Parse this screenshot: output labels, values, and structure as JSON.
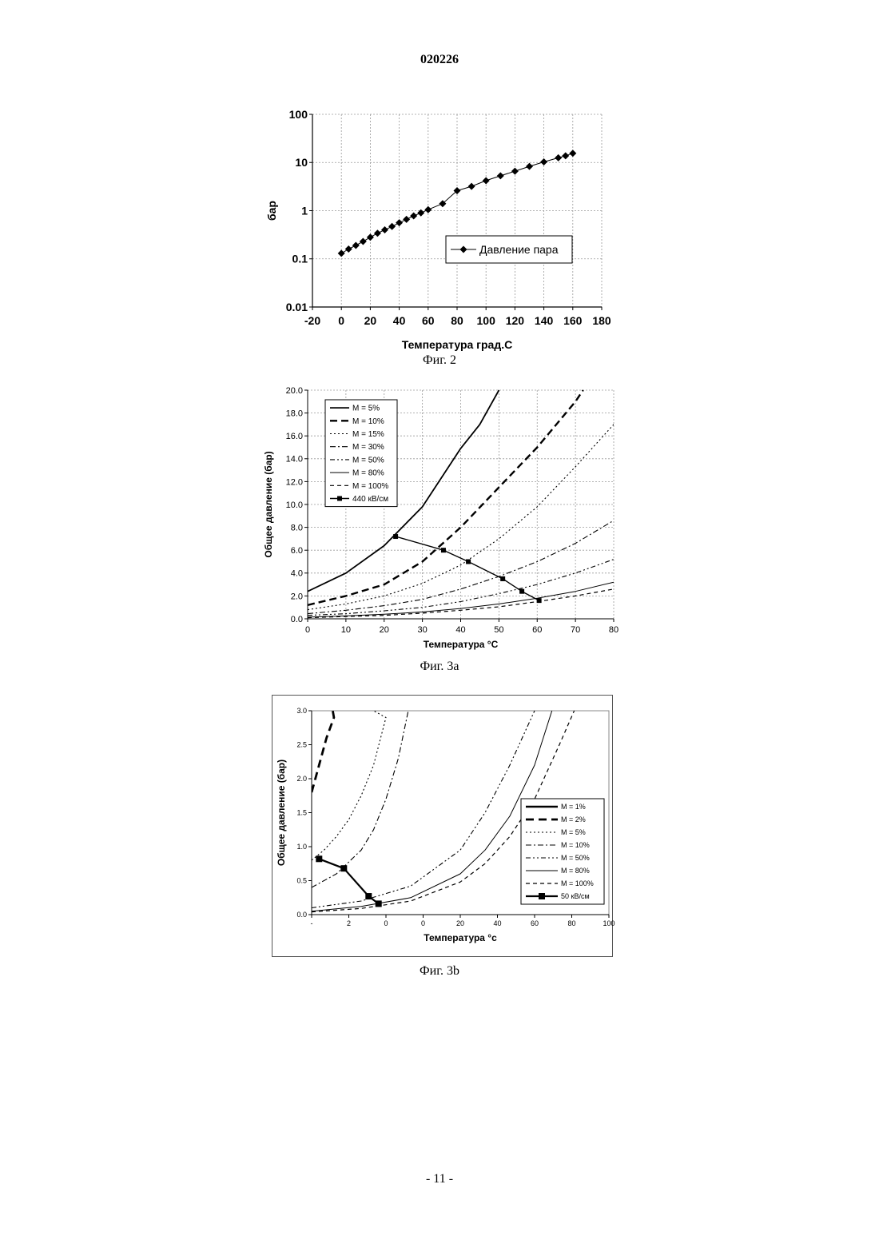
{
  "header": {
    "doc_number": "020226"
  },
  "footer": {
    "page_number": "- 11 -"
  },
  "chart_data": [
    {
      "id": "fig2",
      "type": "line",
      "caption": "Фиг. 2",
      "xlabel": "Температура град.С",
      "ylabel": "бар",
      "yscale": "log",
      "xlim": [
        -20,
        180
      ],
      "ylim": [
        0.01,
        100
      ],
      "x_ticks": [
        "-20",
        "0",
        "20",
        "40",
        "60",
        "80",
        "100",
        "120",
        "140",
        "160",
        "180"
      ],
      "y_ticks": [
        "0.01",
        "0.1",
        "1",
        "10",
        "100"
      ],
      "legend_position": "right",
      "grid": true,
      "series": [
        {
          "name": "Давление пара",
          "marker": "diamond",
          "x": [
            0,
            5,
            10,
            15,
            20,
            25,
            30,
            35,
            40,
            45,
            50,
            55,
            60,
            70,
            80,
            90,
            100,
            110,
            120,
            130,
            140,
            150,
            155,
            160
          ],
          "y": [
            0.13,
            0.16,
            0.19,
            0.23,
            0.28,
            0.34,
            0.4,
            0.47,
            0.56,
            0.66,
            0.78,
            0.9,
            1.05,
            1.4,
            2.6,
            3.2,
            4.2,
            5.3,
            6.6,
            8.3,
            10.3,
            12.5,
            13.8,
            15.5
          ]
        }
      ]
    },
    {
      "id": "fig3a",
      "type": "line",
      "caption": "Фиг. 3a",
      "xlabel": "Температура °С",
      "ylabel": "Общее давление (бар)",
      "xlim": [
        0,
        80
      ],
      "ylim": [
        0,
        20
      ],
      "x_ticks": [
        "0",
        "10",
        "20",
        "30",
        "40",
        "50",
        "60",
        "70",
        "80"
      ],
      "y_ticks": [
        "0.0",
        "2.0",
        "4.0",
        "6.0",
        "8.0",
        "10.0",
        "12.0",
        "14.0",
        "16.0",
        "18.0",
        "20.0"
      ],
      "legend_position": "top-left",
      "grid": true,
      "series": [
        {
          "name": "M = 5%",
          "style": "solid-thick",
          "x": [
            0,
            10,
            20,
            30,
            40,
            45,
            50
          ],
          "y": [
            2.4,
            4.0,
            6.4,
            9.8,
            14.9,
            17.0,
            20.0
          ]
        },
        {
          "name": "M = 10%",
          "style": "long-dash",
          "x": [
            0,
            10,
            20,
            30,
            40,
            50,
            60,
            70,
            72
          ],
          "y": [
            1.2,
            2.0,
            3.0,
            5.0,
            8.0,
            11.5,
            15.0,
            19.0,
            20.0
          ]
        },
        {
          "name": "M = 15%",
          "style": "dotted",
          "x": [
            0,
            10,
            20,
            30,
            40,
            50,
            60,
            70,
            80
          ],
          "y": [
            0.8,
            1.3,
            2.0,
            3.1,
            4.7,
            7.0,
            9.8,
            13.3,
            17.0
          ]
        },
        {
          "name": "M = 30%",
          "style": "dash-dot",
          "x": [
            0,
            10,
            20,
            30,
            40,
            50,
            60,
            70,
            80
          ],
          "y": [
            0.45,
            0.75,
            1.15,
            1.7,
            2.6,
            3.7,
            5.0,
            6.6,
            8.6
          ]
        },
        {
          "name": "M = 50%",
          "style": "dash-dot-dot",
          "x": [
            0,
            10,
            20,
            30,
            40,
            50,
            60,
            70,
            80
          ],
          "y": [
            0.3,
            0.45,
            0.7,
            1.0,
            1.5,
            2.2,
            3.0,
            4.0,
            5.2
          ]
        },
        {
          "name": "M = 80%",
          "style": "solid-thin",
          "x": [
            0,
            10,
            20,
            30,
            40,
            50,
            60,
            70,
            80
          ],
          "y": [
            0.15,
            0.25,
            0.4,
            0.6,
            0.9,
            1.3,
            1.8,
            2.4,
            3.2
          ]
        },
        {
          "name": "M = 100%",
          "style": "dash",
          "x": [
            0,
            10,
            20,
            30,
            40,
            50,
            60,
            70,
            80
          ],
          "y": [
            0.1,
            0.2,
            0.3,
            0.5,
            0.75,
            1.05,
            1.5,
            2.0,
            2.6
          ]
        },
        {
          "name": "440 кВ/см",
          "style": "solid-marker",
          "marker": "square",
          "x": [
            23,
            35.5,
            42,
            51,
            56,
            60.5
          ],
          "y": [
            7.2,
            6.0,
            5.0,
            3.5,
            2.4,
            1.6
          ]
        }
      ]
    },
    {
      "id": "fig3b",
      "type": "line",
      "caption": "Фиг. 3b",
      "xlabel": "Температура °с",
      "ylabel": "Общее давление (бар)",
      "xlim": [
        -20,
        100
      ],
      "ylim": [
        0,
        3
      ],
      "x_ticks": [
        "-",
        "2",
        "0",
        "0",
        "20",
        "40",
        "60",
        "80",
        "100"
      ],
      "y_ticks": [
        "0.0",
        "0.5",
        "1.0",
        "1.5",
        "2.0",
        "2.5",
        "3.0"
      ],
      "legend_position": "right",
      "grid": false,
      "series": [
        {
          "name": "M = 1%",
          "style": "solid-bold",
          "x": [],
          "y": []
        },
        {
          "name": "M = 2%",
          "style": "long-dash-bold",
          "x": [
            -20,
            -17,
            -14,
            -11,
            -11.5
          ],
          "y": [
            1.8,
            2.2,
            2.6,
            2.9,
            3.0
          ]
        },
        {
          "name": "M = 5%",
          "style": "dotted",
          "x": [
            -20,
            -15,
            -10,
            -5,
            0,
            5,
            10,
            5
          ],
          "y": [
            0.8,
            0.95,
            1.15,
            1.4,
            1.75,
            2.2,
            2.9,
            3.0
          ]
        },
        {
          "name": "M = 10%",
          "style": "dash-dot",
          "x": [
            -20,
            -10,
            0,
            5,
            10,
            15,
            19
          ],
          "y": [
            0.4,
            0.6,
            0.95,
            1.25,
            1.7,
            2.3,
            3.0
          ]
        },
        {
          "name": "M = 50%",
          "style": "dash-dot-dot",
          "x": [
            -20,
            0,
            20,
            40,
            50,
            60,
            65,
            70
          ],
          "y": [
            0.1,
            0.2,
            0.42,
            0.95,
            1.5,
            2.2,
            2.6,
            3.0
          ]
        },
        {
          "name": "M = 80%",
          "style": "solid-thin",
          "x": [
            -20,
            0,
            20,
            40,
            50,
            60,
            70,
            77
          ],
          "y": [
            0.05,
            0.12,
            0.25,
            0.6,
            0.95,
            1.45,
            2.2,
            3.0
          ]
        },
        {
          "name": "M = 100%",
          "style": "dash",
          "x": [
            -20,
            0,
            20,
            40,
            50,
            60,
            70,
            80,
            86
          ],
          "y": [
            0.04,
            0.09,
            0.2,
            0.48,
            0.75,
            1.15,
            1.7,
            2.5,
            3.0
          ]
        },
        {
          "name": "50 кВ/см",
          "style": "solid-marker-bold",
          "marker": "square",
          "x": [
            -17,
            -7,
            3,
            7
          ],
          "y": [
            0.82,
            0.68,
            0.27,
            0.16
          ]
        }
      ]
    }
  ]
}
